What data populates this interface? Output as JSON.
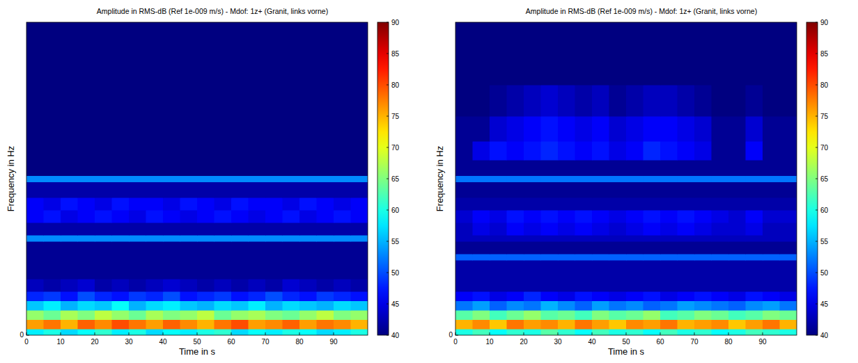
{
  "chart_data": [
    {
      "type": "heatmap",
      "title": "Amplitude in RMS-dB (Ref 1e-009 m/s) - Mdof: 1z+ (Granit, links vorne)",
      "x_label": "Time in s",
      "y_label": "Frequency in Hz",
      "xlim": [
        0,
        100
      ],
      "xticks": [
        0,
        10,
        20,
        30,
        40,
        50,
        60,
        70,
        80,
        90
      ],
      "ylim": [
        0,
        100
      ],
      "yticks": [
        0
      ],
      "x_bins": [
        0,
        5,
        10,
        15,
        20,
        25,
        30,
        35,
        40,
        45,
        50,
        55,
        60,
        65,
        70,
        75,
        80,
        85,
        90,
        95,
        100
      ],
      "y_bins": [
        0,
        2,
        5,
        8,
        11,
        14,
        18,
        24,
        26,
        30,
        32,
        36,
        40,
        44,
        49,
        51,
        56,
        62,
        70,
        80,
        100
      ],
      "zlim": [
        40,
        90
      ],
      "zticks": [
        40,
        45,
        50,
        55,
        60,
        65,
        70,
        75,
        80,
        85,
        90
      ],
      "z": [
        [
          58,
          60,
          57,
          59,
          61,
          58,
          60,
          57,
          59,
          58,
          60,
          61,
          57,
          59,
          58,
          60,
          59,
          57,
          58,
          60
        ],
        [
          76,
          78,
          75,
          79,
          77,
          80,
          78,
          76,
          79,
          77,
          75,
          78,
          80,
          76,
          77,
          79,
          76,
          78,
          77,
          75
        ],
        [
          66,
          64,
          67,
          65,
          68,
          66,
          64,
          67,
          65,
          66,
          68,
          64,
          66,
          67,
          65,
          64,
          66,
          68,
          65,
          66
        ],
        [
          56,
          58,
          55,
          57,
          56,
          59,
          55,
          57,
          58,
          56,
          55,
          57,
          56,
          58,
          55,
          57,
          56,
          55,
          57,
          56
        ],
        [
          48,
          49,
          47,
          50,
          48,
          47,
          49,
          48,
          50,
          47,
          48,
          49,
          47,
          48,
          50,
          48,
          47,
          49,
          48,
          47
        ],
        [
          43,
          42,
          43,
          44,
          42,
          43,
          42,
          43,
          44,
          43,
          42,
          43,
          42,
          43,
          42,
          44,
          43,
          42,
          43,
          42
        ],
        [
          41,
          41,
          41,
          41,
          41,
          41,
          41,
          41,
          41,
          41,
          41,
          41,
          41,
          41,
          41,
          41,
          41,
          41,
          41,
          41
        ],
        [
          41,
          41,
          41,
          41,
          41,
          41,
          41,
          41,
          41,
          41,
          41,
          41,
          41,
          41,
          41,
          41,
          41,
          41,
          41,
          41
        ],
        [
          41,
          41,
          41,
          41,
          41,
          41,
          41,
          41,
          41,
          41,
          41,
          41,
          41,
          41,
          41,
          41,
          41,
          41,
          41,
          41
        ],
        [
          53,
          53,
          53,
          53,
          53,
          53,
          53,
          53,
          53,
          53,
          53,
          53,
          53,
          53,
          53,
          53,
          53,
          53,
          53,
          53
        ],
        [
          42,
          42,
          42,
          42,
          42,
          42,
          42,
          42,
          42,
          42,
          42,
          42,
          42,
          42,
          42,
          42,
          42,
          42,
          42,
          42
        ],
        [
          46,
          47,
          45,
          46,
          47,
          46,
          45,
          47,
          46,
          45,
          46,
          47,
          46,
          45,
          46,
          47,
          45,
          46,
          47,
          46
        ],
        [
          46,
          45,
          47,
          46,
          45,
          47,
          46,
          46,
          45,
          47,
          46,
          45,
          47,
          46,
          46,
          45,
          47,
          46,
          45,
          46
        ],
        [
          42,
          42,
          42,
          42,
          42,
          42,
          42,
          42,
          42,
          42,
          42,
          42,
          42,
          42,
          42,
          42,
          42,
          42,
          42,
          42
        ],
        [
          53,
          53,
          53,
          53,
          53,
          53,
          53,
          53,
          53,
          53,
          53,
          53,
          53,
          53,
          53,
          53,
          53,
          53,
          53,
          53
        ],
        [
          40,
          40,
          40,
          40,
          40,
          40,
          40,
          40,
          40,
          40,
          40,
          40,
          40,
          40,
          40,
          40,
          40,
          40,
          40,
          40
        ],
        [
          40,
          40,
          40,
          40,
          40,
          40,
          40,
          40,
          40,
          40,
          40,
          40,
          40,
          40,
          40,
          40,
          40,
          40,
          40,
          40
        ],
        [
          40,
          40,
          40,
          40,
          40,
          40,
          40,
          40,
          40,
          40,
          40,
          40,
          40,
          40,
          40,
          40,
          40,
          40,
          40,
          40
        ],
        [
          40,
          40,
          40,
          40,
          40,
          40,
          40,
          40,
          40,
          40,
          40,
          40,
          40,
          40,
          40,
          40,
          40,
          40,
          40,
          40
        ],
        [
          40,
          40,
          40,
          40,
          40,
          40,
          40,
          40,
          40,
          40,
          40,
          40,
          40,
          40,
          40,
          40,
          40,
          40,
          40,
          40
        ]
      ]
    },
    {
      "type": "heatmap",
      "title": "Amplitude in RMS-dB (Ref 1e-009 m/s) - Mdof: 1z+ (Granit, links vorne)",
      "x_label": "Time in s",
      "y_label": "Frequency in Hz",
      "xlim": [
        0,
        100
      ],
      "xticks": [
        0,
        10,
        20,
        30,
        40,
        50,
        60,
        70,
        80,
        90
      ],
      "ylim": [
        0,
        100
      ],
      "yticks": [
        0
      ],
      "x_bins": [
        0,
        5,
        10,
        15,
        20,
        25,
        30,
        35,
        40,
        45,
        50,
        55,
        60,
        65,
        70,
        75,
        80,
        85,
        90,
        95,
        100
      ],
      "y_bins": [
        0,
        2,
        5,
        8,
        11,
        14,
        18,
        24,
        26,
        30,
        32,
        36,
        40,
        44,
        49,
        51,
        56,
        62,
        70,
        80,
        100
      ],
      "zlim": [
        40,
        90
      ],
      "zticks": [
        40,
        45,
        50,
        55,
        60,
        65,
        70,
        75,
        80,
        85,
        90
      ],
      "z": [
        [
          60,
          62,
          59,
          61,
          60,
          63,
          61,
          59,
          62,
          60,
          61,
          59,
          62,
          60,
          61,
          59,
          60,
          62,
          61,
          60
        ],
        [
          75,
          77,
          74,
          78,
          76,
          77,
          75,
          78,
          76,
          74,
          77,
          76,
          78,
          75,
          76,
          77,
          74,
          76,
          78,
          75
        ],
        [
          63,
          65,
          62,
          64,
          66,
          63,
          64,
          62,
          65,
          63,
          64,
          66,
          62,
          63,
          65,
          64,
          62,
          63,
          65,
          64
        ],
        [
          52,
          54,
          51,
          53,
          52,
          55,
          53,
          51,
          54,
          52,
          53,
          51,
          52,
          54,
          53,
          52,
          51,
          53,
          54,
          52
        ],
        [
          46,
          47,
          45,
          46,
          48,
          46,
          45,
          47,
          46,
          45,
          46,
          47,
          45,
          46,
          47,
          46,
          45,
          47,
          46,
          45
        ],
        [
          42,
          42,
          42,
          42,
          42,
          42,
          42,
          42,
          42,
          42,
          42,
          42,
          42,
          42,
          42,
          42,
          42,
          42,
          42,
          42
        ],
        [
          42,
          42,
          42,
          42,
          42,
          42,
          42,
          42,
          42,
          42,
          42,
          42,
          42,
          42,
          42,
          42,
          42,
          42,
          42,
          42
        ],
        [
          51,
          51,
          51,
          51,
          51,
          51,
          51,
          51,
          51,
          51,
          51,
          51,
          51,
          51,
          51,
          51,
          51,
          51,
          51,
          51
        ],
        [
          41,
          41,
          41,
          41,
          41,
          41,
          41,
          41,
          41,
          41,
          41,
          41,
          41,
          41,
          41,
          41,
          41,
          41,
          41,
          41
        ],
        [
          43,
          43,
          43,
          43,
          43,
          43,
          43,
          43,
          43,
          43,
          43,
          43,
          43,
          43,
          43,
          43,
          43,
          43,
          43,
          43
        ],
        [
          43,
          45,
          44,
          46,
          45,
          46,
          45,
          46,
          45,
          44,
          45,
          46,
          45,
          46,
          45,
          44,
          44,
          45,
          43,
          43
        ],
        [
          44,
          46,
          45,
          47,
          46,
          47,
          46,
          47,
          46,
          45,
          46,
          47,
          46,
          47,
          46,
          45,
          44,
          46,
          44,
          44
        ],
        [
          42,
          42,
          42,
          42,
          42,
          42,
          42,
          42,
          42,
          42,
          42,
          42,
          42,
          42,
          42,
          42,
          42,
          42,
          42,
          42
        ],
        [
          41,
          41,
          41,
          41,
          41,
          41,
          41,
          41,
          41,
          41,
          41,
          41,
          41,
          41,
          41,
          41,
          41,
          41,
          41,
          41
        ],
        [
          52,
          52,
          52,
          52,
          52,
          52,
          52,
          52,
          52,
          52,
          52,
          52,
          52,
          52,
          52,
          52,
          52,
          52,
          52,
          52
        ],
        [
          41,
          41,
          41,
          41,
          41,
          41,
          41,
          41,
          41,
          41,
          41,
          41,
          41,
          41,
          41,
          41,
          41,
          41,
          41,
          41
        ],
        [
          41,
          45,
          47,
          46,
          47,
          48,
          47,
          46,
          47,
          45,
          46,
          48,
          47,
          46,
          45,
          41,
          41,
          46,
          41,
          41
        ],
        [
          41,
          41,
          44,
          45,
          46,
          47,
          46,
          45,
          46,
          44,
          45,
          46,
          46,
          45,
          44,
          41,
          41,
          44,
          41,
          41
        ],
        [
          40,
          40,
          41,
          42,
          43,
          44,
          43,
          42,
          43,
          41,
          42,
          43,
          43,
          42,
          41,
          40,
          40,
          41,
          40,
          40
        ],
        [
          40,
          40,
          40,
          40,
          40,
          40,
          40,
          40,
          40,
          40,
          40,
          40,
          40,
          40,
          40,
          40,
          40,
          40,
          40,
          40
        ]
      ]
    }
  ]
}
